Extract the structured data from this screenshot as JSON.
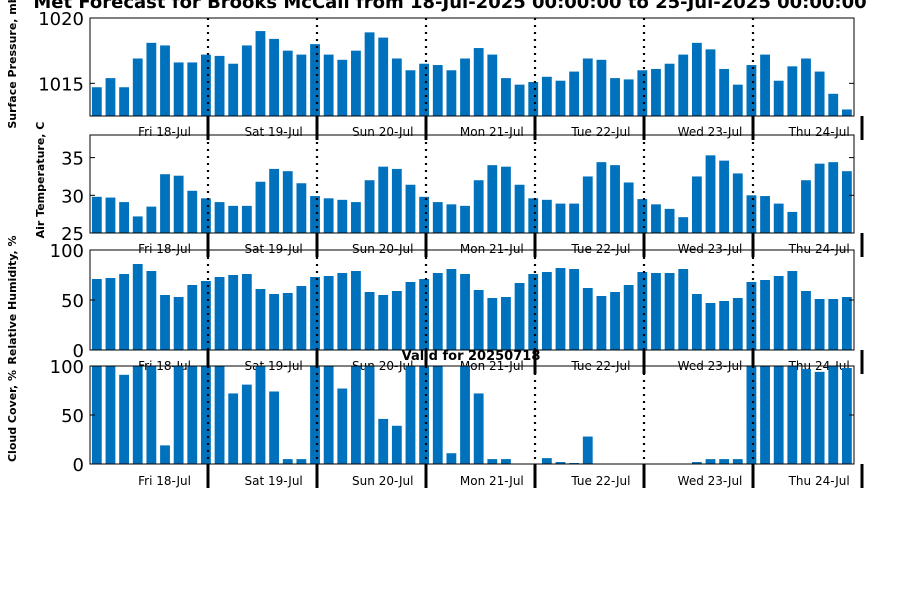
{
  "page": {
    "title": "Met Forecast for Brooks McCall from 18-Jul-2025 00:00:00 to 25-Jul-2025 00:00:00",
    "valid_label": "Valid for 20250718"
  },
  "colors": {
    "bar": "#0072bd",
    "frame": "#000000"
  },
  "chart_data": [
    {
      "type": "bar",
      "name": "pressure",
      "ylabel": "Surface Pressure, mb",
      "ylim": [
        1012.5,
        1020
      ],
      "yticks": [
        1015,
        1020
      ],
      "day_labels": [
        "Fri 18-Jul",
        "Sat 19-Jul",
        "Sun 20-Jul",
        "Mon 21-Jul",
        "Tue 22-Jul",
        "Wed 23-Jul",
        "Thu 24-Jul"
      ],
      "values": [
        1014.7,
        1015.4,
        1014.7,
        1016.9,
        1018.1,
        1017.9,
        1016.6,
        1016.6,
        1017.2,
        1017.1,
        1016.5,
        1017.9,
        1019.0,
        1018.4,
        1017.5,
        1017.2,
        1018.0,
        1017.2,
        1016.8,
        1017.5,
        1018.9,
        1018.5,
        1016.9,
        1016.0,
        1016.5,
        1016.4,
        1016.0,
        1016.9,
        1017.7,
        1017.2,
        1015.4,
        1014.9,
        1015.1,
        1015.5,
        1015.2,
        1015.9,
        1016.9,
        1016.8,
        1015.4,
        1015.3,
        1016.0,
        1016.1,
        1016.5,
        1017.2,
        1018.1,
        1017.6,
        1016.1,
        1014.9,
        1016.4,
        1017.2,
        1015.2,
        1016.3,
        1016.9,
        1015.9,
        1014.2,
        1013.0
      ]
    },
    {
      "type": "bar",
      "name": "temperature",
      "ylabel": "Air Temperature, C",
      "ylim": [
        25,
        38
      ],
      "yticks": [
        25,
        30,
        35
      ],
      "day_labels": [
        "Fri 18-Jul",
        "Sat 19-Jul",
        "Sun 20-Jul",
        "Mon 21-Jul",
        "Tue 22-Jul",
        "Wed 23-Jul",
        "Thu 24-Jul"
      ],
      "values": [
        29.8,
        29.7,
        29.1,
        27.2,
        28.5,
        32.8,
        32.6,
        30.6,
        29.6,
        29.1,
        28.6,
        28.6,
        31.8,
        33.5,
        33.2,
        31.6,
        29.9,
        29.6,
        29.4,
        29.1,
        32.0,
        33.8,
        33.5,
        31.4,
        29.8,
        29.1,
        28.8,
        28.6,
        32.0,
        34.0,
        33.8,
        31.4,
        29.6,
        29.4,
        28.9,
        28.9,
        32.5,
        34.4,
        34.0,
        31.7,
        29.5,
        28.8,
        28.2,
        27.1,
        32.5,
        35.3,
        34.6,
        32.9,
        30.0,
        29.9,
        28.9,
        27.8,
        32.0,
        34.2,
        34.4,
        33.2
      ]
    },
    {
      "type": "bar",
      "name": "humidity",
      "ylabel": "Relative Humidity, %",
      "ylim": [
        0,
        100
      ],
      "yticks": [
        0,
        50,
        100
      ],
      "day_labels": [
        "Fri 18-Jul",
        "Sat 19-Jul",
        "Sun 20-Jul",
        "Mon 21-Jul",
        "Tue 22-Jul",
        "Wed 23-Jul",
        "Thu 24-Jul"
      ],
      "values": [
        71,
        72,
        76,
        86,
        79,
        55,
        53,
        65,
        69,
        73,
        75,
        76,
        61,
        56,
        57,
        64,
        73,
        74,
        77,
        79,
        58,
        55,
        59,
        68,
        71,
        77,
        81,
        76,
        60,
        52,
        53,
        67,
        76,
        78,
        82,
        81,
        62,
        54,
        58,
        65,
        78,
        77,
        77,
        81,
        56,
        47,
        49,
        52,
        68,
        70,
        74,
        79,
        59,
        51,
        51,
        53
      ]
    },
    {
      "type": "bar",
      "name": "cloud",
      "ylabel": "Cloud Cover, %",
      "ylim": [
        0,
        100
      ],
      "yticks": [
        0,
        50,
        100
      ],
      "day_labels": [
        "Fri 18-Jul",
        "Sat 19-Jul",
        "Sun 20-Jul",
        "Mon 21-Jul",
        "Tue 22-Jul",
        "Wed 23-Jul",
        "Thu 24-Jul"
      ],
      "values": [
        100,
        100,
        91,
        100,
        100,
        19,
        100,
        100,
        100,
        100,
        72,
        81,
        100,
        74,
        5,
        5,
        100,
        100,
        77,
        100,
        100,
        46,
        39,
        100,
        100,
        100,
        11,
        100,
        72,
        5,
        5,
        0,
        0,
        6,
        2,
        1,
        28,
        0,
        0,
        0,
        0,
        0,
        0,
        0,
        2,
        5,
        5,
        5,
        100,
        100,
        100,
        100,
        97,
        94,
        100,
        98
      ]
    }
  ]
}
